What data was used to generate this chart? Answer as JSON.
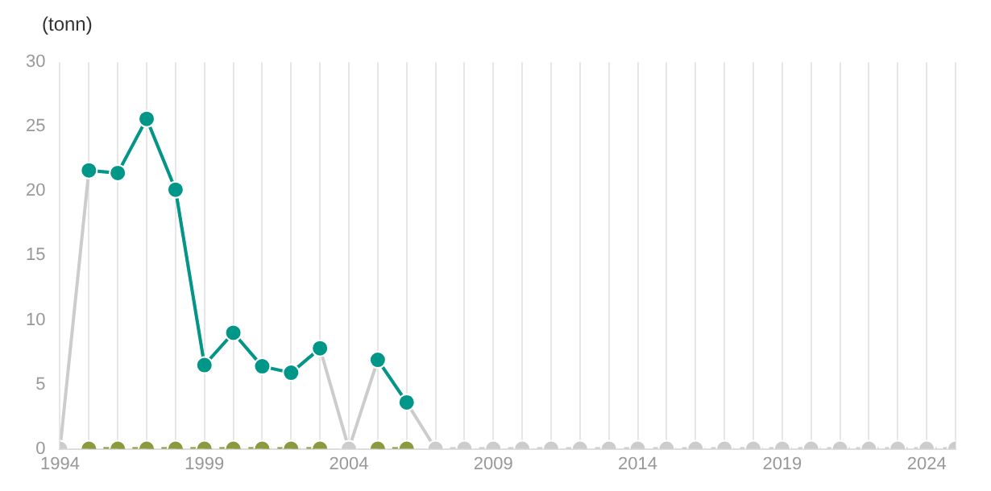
{
  "chart_data": {
    "type": "line",
    "ylabel": "(tonn)",
    "x": [
      1994,
      1995,
      1996,
      1997,
      1998,
      1999,
      2000,
      2001,
      2002,
      2003,
      2004,
      2005,
      2006,
      2007,
      2008,
      2009,
      2010,
      2011,
      2012,
      2013,
      2014,
      2015,
      2016,
      2017,
      2018,
      2019,
      2020,
      2021,
      2022,
      2023,
      2024,
      2025
    ],
    "series": [
      {
        "color": "#cccccc",
        "marker": "none",
        "line_style": "solid",
        "values": [
          0,
          21.6,
          21.4,
          25.6,
          20.1,
          6.5,
          9.0,
          6.4,
          5.9,
          7.8,
          0,
          6.9,
          3.6,
          0,
          null,
          null,
          null,
          null,
          null,
          null,
          null,
          null,
          null,
          null,
          null,
          null,
          null,
          null,
          null,
          null,
          null,
          null
        ]
      },
      {
        "color": "#009688",
        "marker": "circle",
        "line_style": "solid",
        "values": [
          null,
          21.6,
          21.4,
          25.6,
          20.1,
          6.5,
          9.0,
          6.4,
          5.9,
          7.8,
          null,
          6.9,
          3.6,
          null,
          null,
          null,
          null,
          null,
          null,
          null,
          null,
          null,
          null,
          null,
          null,
          null,
          null,
          null,
          null,
          null,
          null,
          null
        ]
      },
      {
        "color": "#8a9a3f",
        "marker": "circle",
        "line_style": "dashed",
        "values": [
          null,
          0,
          0,
          0,
          0,
          0,
          0,
          0,
          0,
          0,
          null,
          0,
          0,
          null,
          null,
          null,
          null,
          null,
          null,
          null,
          null,
          null,
          null,
          null,
          null,
          null,
          null,
          null,
          null,
          null,
          null,
          null
        ]
      },
      {
        "color": "#cccccc",
        "marker": "circle",
        "line_style": "dashed",
        "values": [
          0,
          null,
          null,
          null,
          null,
          null,
          null,
          null,
          null,
          null,
          0,
          null,
          null,
          0,
          0,
          0,
          0,
          0,
          0,
          0,
          0,
          0,
          0,
          0,
          0,
          0,
          0,
          0,
          0,
          0,
          0,
          0
        ]
      }
    ],
    "xlim": [
      1994,
      2025
    ],
    "xticks": [
      1994,
      {
        "value": 1995,
        "label": null
      },
      {
        "value": 1996,
        "label": null
      },
      {
        "value": 1997,
        "label": null
      },
      {
        "value": 1998,
        "label": null
      },
      1999,
      {
        "value": 2000,
        "label": null
      },
      {
        "value": 2001,
        "label": null
      },
      {
        "value": 2002,
        "label": null
      },
      {
        "value": 2003,
        "label": null
      },
      2004,
      {
        "value": 2005,
        "label": null
      },
      {
        "value": 2006,
        "label": null
      },
      {
        "value": 2007,
        "label": null
      },
      {
        "value": 2008,
        "label": null
      },
      2009,
      {
        "value": 2010,
        "label": null
      },
      {
        "value": 2011,
        "label": null
      },
      {
        "value": 2012,
        "label": null
      },
      {
        "value": 2013,
        "label": null
      },
      2014,
      {
        "value": 2015,
        "label": null
      },
      {
        "value": 2016,
        "label": null
      },
      {
        "value": 2017,
        "label": null
      },
      {
        "value": 2018,
        "label": null
      },
      2019,
      {
        "value": 2020,
        "label": null
      },
      {
        "value": 2021,
        "label": null
      },
      {
        "value": 2022,
        "label": null
      },
      {
        "value": 2023,
        "label": null
      },
      2024,
      {
        "value": 2025,
        "label": null
      }
    ],
    "ylim": [
      0,
      30
    ],
    "yticks": [
      0,
      5,
      10,
      15,
      20,
      25,
      30
    ],
    "grid": "x",
    "legend": false
  }
}
